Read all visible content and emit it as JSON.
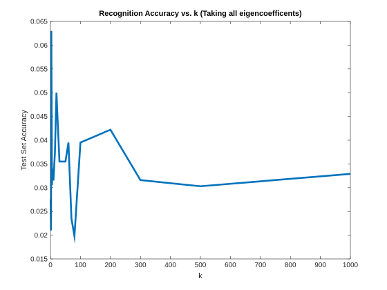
{
  "chart_data": {
    "type": "line",
    "title": "Recognition Accuracy vs. k (Taking all eigencoefficents)",
    "xlabel": "k",
    "ylabel": "Test Set Accuracy",
    "xlim": [
      0,
      1000
    ],
    "ylim": [
      0.015,
      0.065
    ],
    "xticks": [
      0,
      100,
      200,
      300,
      400,
      500,
      600,
      700,
      800,
      900,
      1000
    ],
    "yticks": [
      0.015,
      0.02,
      0.025,
      0.03,
      0.035,
      0.04,
      0.045,
      0.05,
      0.055,
      0.06,
      0.065
    ],
    "xtick_labels": [
      "0",
      "100",
      "200",
      "300",
      "400",
      "500",
      "600",
      "700",
      "800",
      "900",
      "1000"
    ],
    "ytick_labels": [
      "0.015",
      "0.02",
      "0.025",
      "0.03",
      "0.035",
      "0.04",
      "0.045",
      "0.05",
      "0.055",
      "0.06",
      "0.065"
    ],
    "grid": false,
    "series": [
      {
        "color": "#0072bd",
        "x": [
          1,
          2,
          3,
          5,
          7,
          10,
          15,
          20,
          30,
          50,
          60,
          70,
          80,
          100,
          200,
          300,
          500,
          1000
        ],
        "y": [
          0.0275,
          0.021,
          0.063,
          0.0305,
          0.034,
          0.0315,
          0.0375,
          0.05,
          0.0355,
          0.0355,
          0.0395,
          0.0235,
          0.0198,
          0.0395,
          0.0422,
          0.0316,
          0.0303,
          0.0329
        ]
      }
    ]
  }
}
